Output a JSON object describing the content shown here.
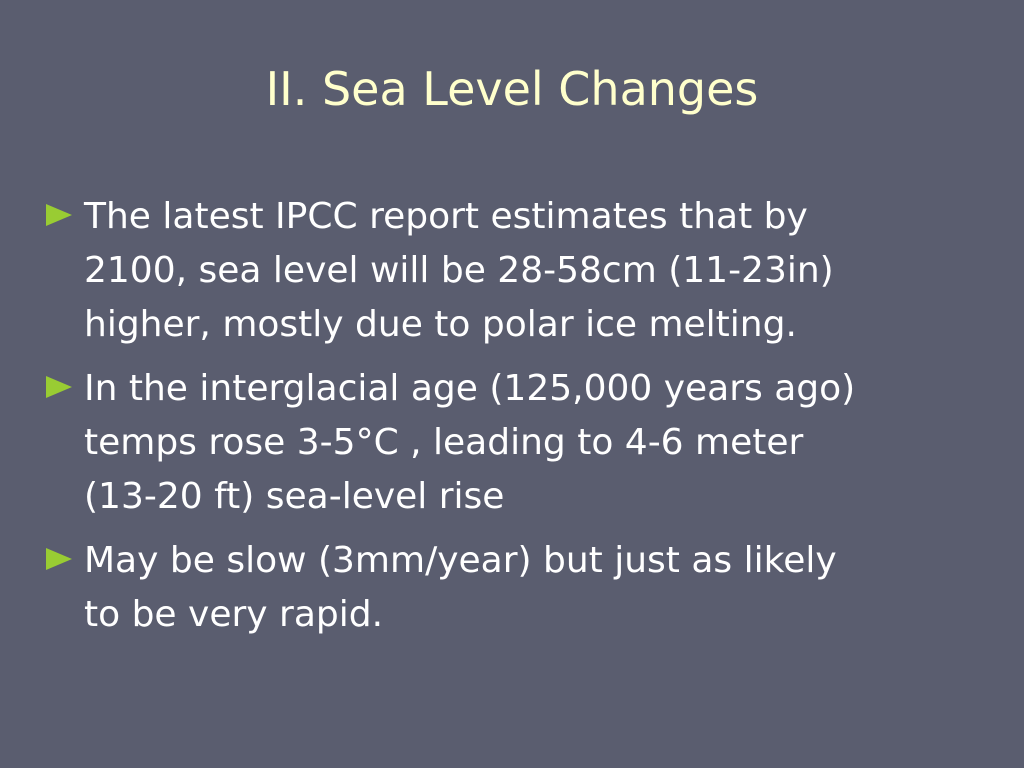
{
  "slide": {
    "title": "II. Sea Level Changes",
    "bullets": [
      [
        "The latest IPCC report estimates that by",
        "2100, sea level will be 28-58cm (11-23in)",
        "higher, mostly due to polar ice melting."
      ],
      [
        "In the interglacial age (125,000 years ago)",
        "temps rose 3-5°C , leading to 4-6 meter",
        "(13-20 ft) sea-level rise"
      ],
      [
        "May be slow (3mm/year) but just as likely",
        "to be very rapid."
      ]
    ]
  }
}
